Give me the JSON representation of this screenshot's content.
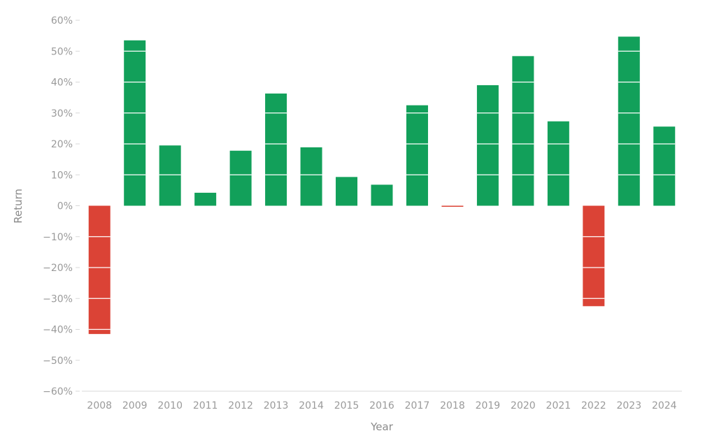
{
  "chart_data": {
    "type": "bar",
    "title": "",
    "xlabel": "Year",
    "ylabel": "Return",
    "ylim": [
      -60,
      60
    ],
    "yticks": [
      -60,
      -50,
      -40,
      -30,
      -20,
      -10,
      0,
      10,
      20,
      30,
      40,
      50,
      60
    ],
    "ytick_labels": [
      "−60%",
      "−50%",
      "−40%",
      "−30%",
      "−20%",
      "−10%",
      "0%",
      "10%",
      "20%",
      "30%",
      "40%",
      "50%",
      "60%"
    ],
    "categories": [
      "2008",
      "2009",
      "2010",
      "2011",
      "2012",
      "2013",
      "2014",
      "2015",
      "2016",
      "2017",
      "2018",
      "2019",
      "2020",
      "2021",
      "2022",
      "2023",
      "2024"
    ],
    "values": [
      -41.5,
      53.5,
      19.5,
      4.2,
      17.8,
      36.3,
      18.9,
      9.3,
      6.8,
      32.5,
      -0.3,
      39.0,
      48.4,
      27.3,
      -32.5,
      54.7,
      25.6
    ],
    "grid": false,
    "legend": "none",
    "colors": {
      "positive": "#12a05a",
      "negative": "#db4336",
      "axis": "#d9d9d9",
      "tick_text": "#9a9a9a",
      "title_text": "#8a8a8a",
      "band_line": "#ffffff"
    }
  }
}
